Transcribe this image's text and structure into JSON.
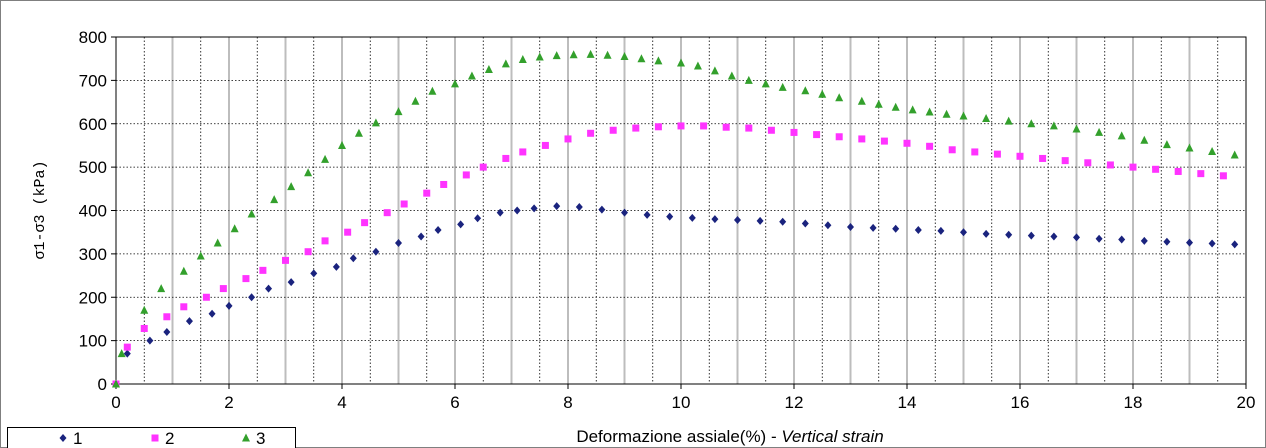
{
  "chart_data": {
    "type": "scatter",
    "xlabel": "Deformazione assiale(%) - ",
    "xlabel_italic": "Vertical strain",
    "ylabel": "σ1-σ3  (kPa)",
    "xlim": [
      0,
      20
    ],
    "ylim": [
      0,
      800
    ],
    "x_ticks": [
      "0",
      "2",
      "4",
      "6",
      "8",
      "10",
      "12",
      "14",
      "16",
      "18",
      "20"
    ],
    "y_ticks": [
      "0",
      "100",
      "200",
      "300",
      "400",
      "500",
      "600",
      "700",
      "800"
    ],
    "grid": true,
    "legend_position": "bottom-left",
    "series": [
      {
        "name": "1",
        "color": "#1a237e",
        "marker": "diamond",
        "x": [
          0,
          0.2,
          0.6,
          0.9,
          1.3,
          1.7,
          2.0,
          2.4,
          2.7,
          3.1,
          3.5,
          3.9,
          4.2,
          4.6,
          5.0,
          5.4,
          5.7,
          6.1,
          6.4,
          6.8,
          7.1,
          7.4,
          7.8,
          8.2,
          8.6,
          9.0,
          9.4,
          9.8,
          10.2,
          10.6,
          11.0,
          11.4,
          11.8,
          12.2,
          12.6,
          13.0,
          13.4,
          13.8,
          14.2,
          14.6,
          15.0,
          15.4,
          15.8,
          16.2,
          16.6,
          17.0,
          17.4,
          17.8,
          18.2,
          18.6,
          19.0,
          19.4,
          19.8
        ],
        "y": [
          0,
          70,
          100,
          120,
          145,
          162,
          180,
          200,
          220,
          235,
          255,
          270,
          290,
          305,
          325,
          340,
          355,
          368,
          382,
          395,
          400,
          405,
          410,
          408,
          402,
          395,
          390,
          386,
          383,
          380,
          378,
          376,
          374,
          370,
          366,
          362,
          360,
          358,
          355,
          353,
          350,
          346,
          344,
          342,
          340,
          338,
          335,
          333,
          330,
          328,
          326,
          324,
          322
        ]
      },
      {
        "name": "2",
        "color": "#ff33ff",
        "marker": "square",
        "x": [
          0,
          0.2,
          0.5,
          0.9,
          1.2,
          1.6,
          1.9,
          2.3,
          2.6,
          3.0,
          3.4,
          3.7,
          4.1,
          4.4,
          4.8,
          5.1,
          5.5,
          5.8,
          6.2,
          6.5,
          6.9,
          7.2,
          7.6,
          8.0,
          8.4,
          8.8,
          9.2,
          9.6,
          10.0,
          10.4,
          10.8,
          11.2,
          11.6,
          12.0,
          12.4,
          12.8,
          13.2,
          13.6,
          14.0,
          14.4,
          14.8,
          15.2,
          15.6,
          16.0,
          16.4,
          16.8,
          17.2,
          17.6,
          18.0,
          18.4,
          18.8,
          19.2,
          19.6
        ],
        "y": [
          0,
          85,
          128,
          155,
          178,
          200,
          220,
          243,
          262,
          285,
          305,
          330,
          350,
          372,
          395,
          415,
          440,
          460,
          482,
          500,
          520,
          535,
          550,
          565,
          578,
          585,
          590,
          593,
          595,
          595,
          592,
          590,
          585,
          580,
          575,
          570,
          565,
          560,
          555,
          548,
          540,
          535,
          530,
          525,
          520,
          515,
          510,
          505,
          500,
          495,
          490,
          485,
          480
        ]
      },
      {
        "name": "3",
        "color": "#33a02c",
        "marker": "triangle",
        "x": [
          0,
          0.1,
          0.5,
          0.8,
          1.2,
          1.5,
          1.8,
          2.1,
          2.4,
          2.8,
          3.1,
          3.4,
          3.7,
          4.0,
          4.3,
          4.6,
          5.0,
          5.3,
          5.6,
          6.0,
          6.3,
          6.6,
          6.9,
          7.2,
          7.5,
          7.8,
          8.1,
          8.4,
          8.7,
          9.0,
          9.3,
          9.6,
          10.0,
          10.3,
          10.6,
          10.9,
          11.2,
          11.5,
          11.8,
          12.2,
          12.5,
          12.8,
          13.2,
          13.5,
          13.8,
          14.1,
          14.4,
          14.7,
          15.0,
          15.4,
          15.8,
          16.2,
          16.6,
          17.0,
          17.4,
          17.8,
          18.2,
          18.6,
          19.0,
          19.4,
          19.8
        ],
        "y": [
          0,
          70,
          170,
          220,
          260,
          295,
          325,
          358,
          392,
          425,
          455,
          487,
          518,
          550,
          578,
          602,
          628,
          652,
          675,
          692,
          710,
          725,
          738,
          748,
          754,
          757,
          759,
          760,
          758,
          755,
          750,
          745,
          740,
          733,
          722,
          710,
          700,
          692,
          684,
          676,
          668,
          660,
          652,
          645,
          638,
          632,
          627,
          622,
          618,
          612,
          606,
          600,
          595,
          588,
          580,
          572,
          562,
          552,
          544,
          536,
          528
        ]
      }
    ]
  }
}
